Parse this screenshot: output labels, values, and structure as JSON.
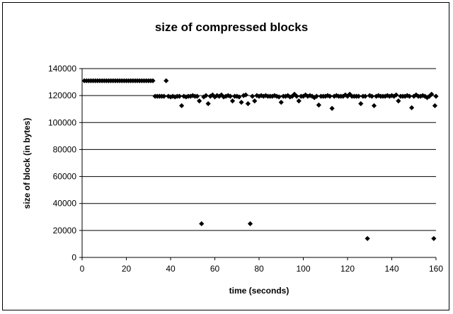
{
  "chart_data": {
    "type": "scatter",
    "title": "size of compressed blocks",
    "xlabel": "time (seconds)",
    "ylabel": "size of block (in bytes)",
    "xlim": [
      0,
      160
    ],
    "ylim": [
      0,
      140000
    ],
    "xticks": [
      "0",
      "20",
      "40",
      "60",
      "80",
      "100",
      "120",
      "140",
      "160"
    ],
    "yticks": [
      "0",
      "20000",
      "40000",
      "60000",
      "80000",
      "100000",
      "120000",
      "140000"
    ],
    "grid": "horizontal major",
    "legend": "none",
    "marker": "diamond",
    "marker_color": "#000000",
    "points": [
      [
        1,
        131000
      ],
      [
        2,
        131000
      ],
      [
        3,
        131000
      ],
      [
        4,
        131000
      ],
      [
        5,
        131000
      ],
      [
        6,
        131000
      ],
      [
        7,
        131000
      ],
      [
        8,
        131000
      ],
      [
        9,
        131000
      ],
      [
        10,
        131000
      ],
      [
        11,
        131000
      ],
      [
        12,
        131000
      ],
      [
        13,
        131000
      ],
      [
        14,
        131000
      ],
      [
        15,
        131000
      ],
      [
        16,
        131000
      ],
      [
        17,
        131000
      ],
      [
        18,
        131000
      ],
      [
        19,
        131000
      ],
      [
        20,
        131000
      ],
      [
        21,
        131000
      ],
      [
        22,
        131000
      ],
      [
        23,
        131000
      ],
      [
        24,
        131000
      ],
      [
        25,
        131000
      ],
      [
        26,
        131000
      ],
      [
        27,
        131000
      ],
      [
        28,
        131000
      ],
      [
        29,
        131000
      ],
      [
        30,
        131000
      ],
      [
        31,
        131000
      ],
      [
        32,
        131000
      ],
      [
        33,
        119500
      ],
      [
        34,
        119500
      ],
      [
        35,
        119500
      ],
      [
        36,
        119500
      ],
      [
        37,
        119500
      ],
      [
        38,
        131000
      ],
      [
        39,
        119500
      ],
      [
        40,
        119000
      ],
      [
        41,
        119500
      ],
      [
        42,
        119000
      ],
      [
        43,
        119500
      ],
      [
        44,
        119500
      ],
      [
        45,
        112500
      ],
      [
        46,
        119500
      ],
      [
        47,
        119000
      ],
      [
        48,
        119500
      ],
      [
        49,
        119500
      ],
      [
        50,
        120000
      ],
      [
        51,
        119500
      ],
      [
        52,
        119500
      ],
      [
        53,
        116000
      ],
      [
        54,
        25000
      ],
      [
        55,
        119000
      ],
      [
        56,
        120000
      ],
      [
        57,
        114000
      ],
      [
        58,
        119500
      ],
      [
        59,
        120500
      ],
      [
        60,
        119000
      ],
      [
        61,
        120000
      ],
      [
        62,
        119500
      ],
      [
        63,
        120500
      ],
      [
        64,
        119000
      ],
      [
        65,
        119500
      ],
      [
        66,
        120000
      ],
      [
        67,
        119500
      ],
      [
        68,
        116000
      ],
      [
        69,
        119500
      ],
      [
        70,
        119500
      ],
      [
        71,
        119000
      ],
      [
        72,
        115000
      ],
      [
        73,
        120000
      ],
      [
        74,
        120500
      ],
      [
        75,
        114000
      ],
      [
        76,
        25000
      ],
      [
        77,
        119500
      ],
      [
        78,
        116000
      ],
      [
        79,
        120000
      ],
      [
        80,
        119500
      ],
      [
        81,
        120000
      ],
      [
        82,
        119500
      ],
      [
        83,
        120000
      ],
      [
        84,
        119500
      ],
      [
        85,
        119500
      ],
      [
        86,
        119500
      ],
      [
        87,
        120000
      ],
      [
        88,
        119500
      ],
      [
        89,
        119000
      ],
      [
        90,
        115000
      ],
      [
        91,
        119500
      ],
      [
        92,
        119500
      ],
      [
        93,
        120000
      ],
      [
        94,
        119000
      ],
      [
        95,
        119500
      ],
      [
        96,
        121000
      ],
      [
        97,
        119500
      ],
      [
        98,
        116000
      ],
      [
        99,
        119500
      ],
      [
        100,
        119500
      ],
      [
        101,
        120500
      ],
      [
        102,
        119500
      ],
      [
        103,
        120000
      ],
      [
        104,
        119500
      ],
      [
        105,
        118500
      ],
      [
        106,
        119500
      ],
      [
        107,
        113000
      ],
      [
        108,
        119500
      ],
      [
        109,
        119500
      ],
      [
        110,
        119500
      ],
      [
        111,
        120000
      ],
      [
        112,
        119500
      ],
      [
        113,
        110500
      ],
      [
        114,
        119500
      ],
      [
        115,
        120000
      ],
      [
        116,
        119500
      ],
      [
        117,
        119500
      ],
      [
        118,
        119500
      ],
      [
        119,
        120500
      ],
      [
        120,
        119500
      ],
      [
        121,
        121000
      ],
      [
        122,
        119500
      ],
      [
        123,
        119500
      ],
      [
        124,
        119500
      ],
      [
        125,
        119500
      ],
      [
        126,
        114000
      ],
      [
        127,
        119500
      ],
      [
        128,
        119500
      ],
      [
        129,
        14000
      ],
      [
        130,
        120000
      ],
      [
        131,
        119500
      ],
      [
        132,
        112500
      ],
      [
        133,
        119500
      ],
      [
        134,
        120000
      ],
      [
        135,
        119500
      ],
      [
        136,
        119500
      ],
      [
        137,
        119500
      ],
      [
        138,
        120000
      ],
      [
        139,
        119500
      ],
      [
        140,
        120000
      ],
      [
        141,
        119500
      ],
      [
        142,
        120500
      ],
      [
        143,
        116000
      ],
      [
        144,
        119500
      ],
      [
        145,
        119500
      ],
      [
        146,
        119500
      ],
      [
        147,
        120000
      ],
      [
        148,
        119500
      ],
      [
        149,
        111000
      ],
      [
        150,
        119500
      ],
      [
        151,
        120500
      ],
      [
        152,
        119500
      ],
      [
        153,
        119500
      ],
      [
        154,
        120000
      ],
      [
        155,
        119500
      ],
      [
        156,
        118500
      ],
      [
        157,
        119500
      ],
      [
        158,
        121000
      ],
      [
        159,
        14000
      ],
      [
        159.5,
        112500
      ],
      [
        160,
        119500
      ]
    ]
  }
}
